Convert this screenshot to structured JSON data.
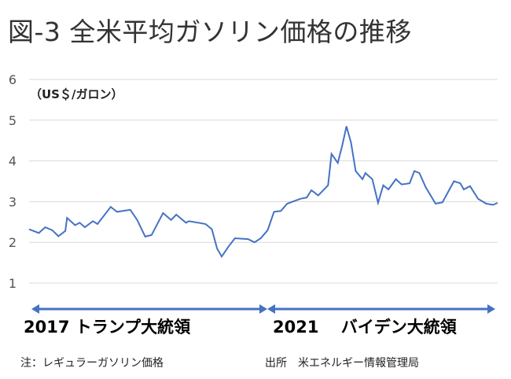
{
  "chart_data": {
    "type": "line",
    "title": "図-3 全米平均ガソリン価格の推移",
    "ylabel": "（US＄/ガロン）",
    "xlabel": "",
    "ylim": [
      1,
      6
    ],
    "xlim": [
      2017.0,
      2025.15
    ],
    "yticks": [
      "1",
      "2",
      "3",
      "4",
      "5",
      "6"
    ],
    "grid": true,
    "line_color": "#4472C4",
    "series": [
      {
        "name": "レギュラーガソリン価格",
        "points": [
          [
            2017.0,
            2.32
          ],
          [
            2017.17,
            2.23
          ],
          [
            2017.28,
            2.37
          ],
          [
            2017.4,
            2.3
          ],
          [
            2017.51,
            2.15
          ],
          [
            2017.63,
            2.28
          ],
          [
            2017.66,
            2.6
          ],
          [
            2017.8,
            2.42
          ],
          [
            2017.88,
            2.48
          ],
          [
            2017.97,
            2.37
          ],
          [
            2018.11,
            2.52
          ],
          [
            2018.19,
            2.45
          ],
          [
            2018.42,
            2.87
          ],
          [
            2018.53,
            2.75
          ],
          [
            2018.76,
            2.8
          ],
          [
            2018.88,
            2.55
          ],
          [
            2019.02,
            2.14
          ],
          [
            2019.13,
            2.18
          ],
          [
            2019.33,
            2.72
          ],
          [
            2019.47,
            2.55
          ],
          [
            2019.56,
            2.68
          ],
          [
            2019.73,
            2.48
          ],
          [
            2019.78,
            2.52
          ],
          [
            2020.07,
            2.45
          ],
          [
            2020.18,
            2.32
          ],
          [
            2020.27,
            1.85
          ],
          [
            2020.35,
            1.65
          ],
          [
            2020.47,
            1.9
          ],
          [
            2020.58,
            2.1
          ],
          [
            2020.81,
            2.08
          ],
          [
            2020.92,
            2.0
          ],
          [
            2021.03,
            2.1
          ],
          [
            2021.15,
            2.3
          ],
          [
            2021.26,
            2.75
          ],
          [
            2021.38,
            2.77
          ],
          [
            2021.49,
            2.95
          ],
          [
            2021.72,
            3.07
          ],
          [
            2021.83,
            3.1
          ],
          [
            2021.91,
            3.28
          ],
          [
            2022.03,
            3.15
          ],
          [
            2022.2,
            3.4
          ],
          [
            2022.26,
            4.17
          ],
          [
            2022.37,
            3.95
          ],
          [
            2022.45,
            4.4
          ],
          [
            2022.52,
            4.85
          ],
          [
            2022.6,
            4.45
          ],
          [
            2022.68,
            3.75
          ],
          [
            2022.8,
            3.55
          ],
          [
            2022.85,
            3.7
          ],
          [
            2022.97,
            3.55
          ],
          [
            2023.07,
            2.97
          ],
          [
            2023.16,
            3.4
          ],
          [
            2023.25,
            3.3
          ],
          [
            2023.38,
            3.55
          ],
          [
            2023.48,
            3.42
          ],
          [
            2023.62,
            3.45
          ],
          [
            2023.7,
            3.75
          ],
          [
            2023.79,
            3.7
          ],
          [
            2023.9,
            3.35
          ],
          [
            2024.07,
            2.95
          ],
          [
            2024.19,
            2.98
          ],
          [
            2024.39,
            3.5
          ],
          [
            2024.5,
            3.45
          ],
          [
            2024.56,
            3.3
          ],
          [
            2024.67,
            3.38
          ],
          [
            2024.81,
            3.07
          ],
          [
            2024.95,
            2.95
          ],
          [
            2025.07,
            2.92
          ],
          [
            2025.15,
            2.97
          ]
        ]
      }
    ],
    "annotations": {
      "era1": "2017 トランプ大統領",
      "era2": "2021　 バイデン大統領",
      "era_boundary": 2021.0,
      "note": "注：レギュラーガソリン価格",
      "source": "出所　米エネルギー情報管理局"
    }
  }
}
